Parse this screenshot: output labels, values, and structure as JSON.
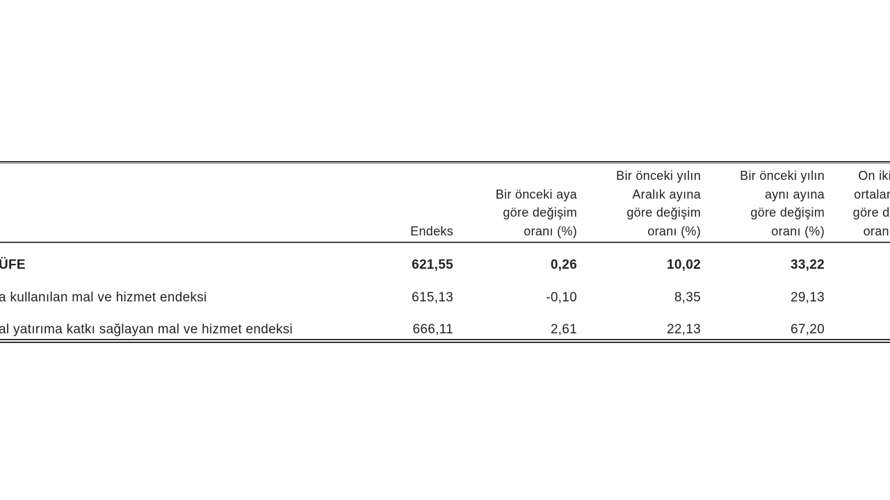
{
  "table": {
    "headers": [
      {
        "lines": [
          "Endeks"
        ]
      },
      {
        "lines": [
          "Bir önceki aya",
          "göre değişim",
          "oranı (%)"
        ]
      },
      {
        "lines": [
          "Bir önceki yılın",
          "Aralık ayına",
          "göre değişim",
          "oranı (%)"
        ]
      },
      {
        "lines": [
          "Bir önceki yılın",
          "aynı ayına",
          "göre değişim",
          "oranı (%)"
        ]
      },
      {
        "lines": [
          "On iki aylık",
          "ortalamalara",
          "göre değişim",
          "oranı (%)"
        ]
      }
    ],
    "rows": [
      {
        "label": "ÜFE",
        "bold": true,
        "values": [
          "621,55",
          "0,26",
          "10,02",
          "33,22"
        ]
      },
      {
        "label": "a kullanılan mal ve hizmet endeksi",
        "bold": false,
        "values": [
          "615,13",
          "-0,10",
          "8,35",
          "29,13"
        ]
      },
      {
        "label": "al yatırıma katkı sağlayan mal ve hizmet endeksi",
        "bold": false,
        "values": [
          "666,11",
          "2,61",
          "22,13",
          "67,20"
        ]
      }
    ]
  }
}
